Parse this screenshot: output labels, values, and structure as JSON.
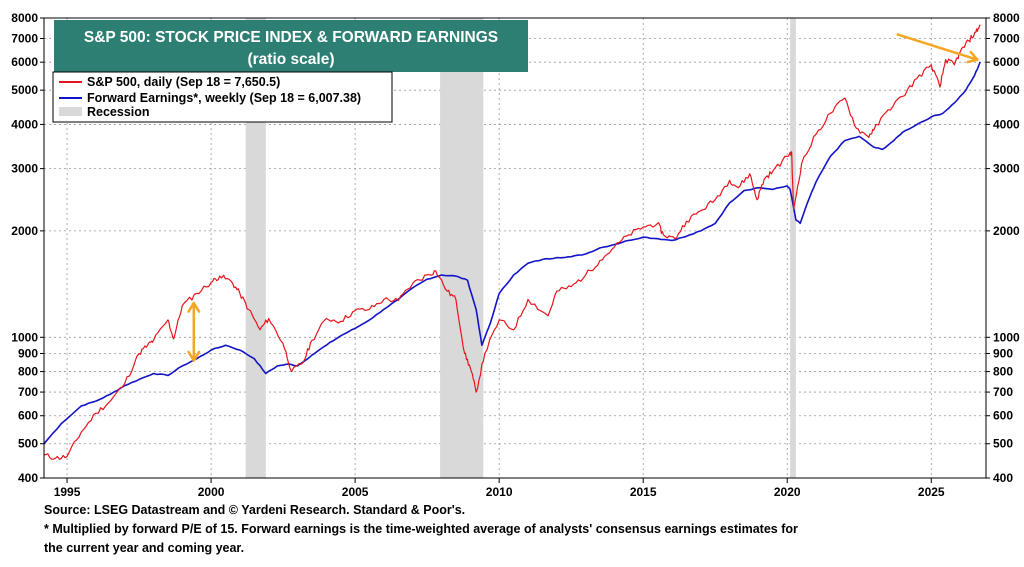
{
  "chart_data": {
    "type": "line",
    "title": "S&P 500: STOCK PRICE INDEX & FORWARD EARNINGS",
    "subtitle": "(ratio scale)",
    "xlabel": "",
    "ylabel": "",
    "y_scale": "log",
    "ylim": [
      400,
      8000
    ],
    "xlim": [
      1994.2,
      2026.9
    ],
    "x_ticks": [
      1995,
      2000,
      2005,
      2010,
      2015,
      2020,
      2025
    ],
    "x_tick_labels": [
      "1995",
      "2000",
      "2005",
      "2010",
      "2015",
      "2020",
      "2025"
    ],
    "y_ticks": [
      400,
      500,
      600,
      700,
      800,
      900,
      1000,
      2000,
      3000,
      4000,
      5000,
      6000,
      7000,
      8000
    ],
    "y_tick_labels": [
      "400",
      "500",
      "600",
      "700",
      "800",
      "900",
      "1000",
      "2000",
      "3000",
      "4000",
      "5000",
      "6000",
      "7000",
      "8000"
    ],
    "grid": true,
    "legend_position": "top-left",
    "series": [
      {
        "name": "S&P 500, daily (Sep 18 = 7,650.5)",
        "color": "#e8141c",
        "x": [
          1994.2,
          1994.6,
          1995.0,
          1995.5,
          1996.0,
          1996.5,
          1997.0,
          1997.5,
          1997.8,
          1998.0,
          1998.5,
          1998.7,
          1999.0,
          1999.5,
          2000.0,
          2000.3,
          2000.7,
          2001.0,
          2001.3,
          2001.7,
          2002.0,
          2002.5,
          2002.8,
          2003.2,
          2003.5,
          2004.0,
          2004.5,
          2005.0,
          2005.5,
          2006.0,
          2006.5,
          2007.0,
          2007.5,
          2007.8,
          2008.2,
          2008.5,
          2008.8,
          2009.0,
          2009.2,
          2009.5,
          2010.0,
          2010.5,
          2011.0,
          2011.7,
          2012.0,
          2012.5,
          2013.0,
          2013.5,
          2014.0,
          2014.5,
          2015.0,
          2015.5,
          2015.7,
          2016.1,
          2016.5,
          2017.0,
          2017.5,
          2018.0,
          2018.3,
          2018.7,
          2018.95,
          2019.2,
          2019.5,
          2020.0,
          2020.15,
          2020.22,
          2020.5,
          2021.0,
          2021.5,
          2022.0,
          2022.4,
          2022.8,
          2023.0,
          2023.5,
          2024.0,
          2024.5,
          2025.0,
          2025.3,
          2025.5,
          2025.8,
          2026.0,
          2026.3,
          2026.55,
          2026.7
        ],
        "values": [
          465,
          455,
          460,
          540,
          610,
          660,
          740,
          900,
          950,
          980,
          1120,
          990,
          1230,
          1330,
          1430,
          1490,
          1440,
          1330,
          1200,
          1050,
          1130,
          960,
          800,
          850,
          980,
          1130,
          1110,
          1190,
          1200,
          1280,
          1270,
          1420,
          1500,
          1540,
          1350,
          1280,
          900,
          820,
          700,
          900,
          1120,
          1050,
          1280,
          1150,
          1350,
          1390,
          1500,
          1650,
          1800,
          1950,
          2050,
          2100,
          1950,
          1900,
          2130,
          2280,
          2450,
          2780,
          2650,
          2900,
          2450,
          2800,
          2950,
          3250,
          3350,
          2300,
          3100,
          3750,
          4300,
          4750,
          3900,
          3700,
          3850,
          4400,
          4800,
          5400,
          5900,
          5100,
          6100,
          5900,
          6400,
          6900,
          7300,
          7650
        ]
      },
      {
        "name": "Forward Earnings*, weekly (Sep 18 = 6,007.38)",
        "color": "#1214c8",
        "x": [
          1994.2,
          1994.8,
          1995.5,
          1996.0,
          1996.5,
          1997.0,
          1997.5,
          1998.0,
          1998.5,
          1999.0,
          1999.5,
          2000.0,
          2000.5,
          2001.0,
          2001.5,
          2001.9,
          2002.3,
          2002.7,
          2003.0,
          2003.5,
          2004.0,
          2004.5,
          2005.0,
          2005.5,
          2006.0,
          2006.5,
          2007.0,
          2007.5,
          2008.0,
          2008.5,
          2008.9,
          2009.2,
          2009.4,
          2009.7,
          2010.0,
          2010.5,
          2011.0,
          2011.5,
          2012.0,
          2012.5,
          2013.0,
          2013.5,
          2014.0,
          2014.5,
          2015.0,
          2015.5,
          2016.0,
          2016.5,
          2017.0,
          2017.5,
          2018.0,
          2018.5,
          2019.0,
          2019.5,
          2020.0,
          2020.1,
          2020.3,
          2020.45,
          2020.7,
          2021.0,
          2021.5,
          2022.0,
          2022.5,
          2023.0,
          2023.3,
          2023.7,
          2024.0,
          2024.5,
          2025.0,
          2025.4,
          2025.8,
          2026.2,
          2026.5,
          2026.7
        ],
        "values": [
          500,
          570,
          640,
          660,
          690,
          730,
          760,
          790,
          780,
          830,
          870,
          920,
          950,
          920,
          870,
          790,
          830,
          840,
          830,
          890,
          950,
          1010,
          1060,
          1120,
          1200,
          1280,
          1380,
          1460,
          1500,
          1490,
          1450,
          1200,
          950,
          1100,
          1330,
          1500,
          1620,
          1660,
          1680,
          1690,
          1720,
          1790,
          1830,
          1880,
          1920,
          1900,
          1880,
          1930,
          2000,
          2100,
          2400,
          2600,
          2650,
          2620,
          2680,
          2620,
          2150,
          2100,
          2400,
          2750,
          3250,
          3600,
          3700,
          3450,
          3400,
          3600,
          3800,
          4000,
          4200,
          4300,
          4600,
          5000,
          5500,
          6007
        ]
      }
    ],
    "recession_periods": [
      [
        2001.2,
        2001.9
      ],
      [
        2007.95,
        2009.45
      ],
      [
        2020.1,
        2020.3
      ]
    ],
    "recession_label": "Recession",
    "recession_color": "#d9d9d9",
    "annotations": [
      {
        "type": "double-arrow",
        "color": "#f5a623",
        "x": 1999.4,
        "y_values": [
          1250,
          860
        ]
      },
      {
        "type": "arrow",
        "color": "#f5a623",
        "from": [
          2023.8,
          7200
        ],
        "to": [
          2026.6,
          6100
        ]
      }
    ],
    "title_box_color": "#2e7f73"
  },
  "footnotes": {
    "source": "Source: LSEG Datastream and © Yardeni Research. Standard & Poor's.",
    "note_line1": "* Multiplied by forward P/E of 15. Forward earnings is the time-weighted average of analysts' consensus earnings estimates for",
    "note_line2": "the current year and coming year."
  }
}
